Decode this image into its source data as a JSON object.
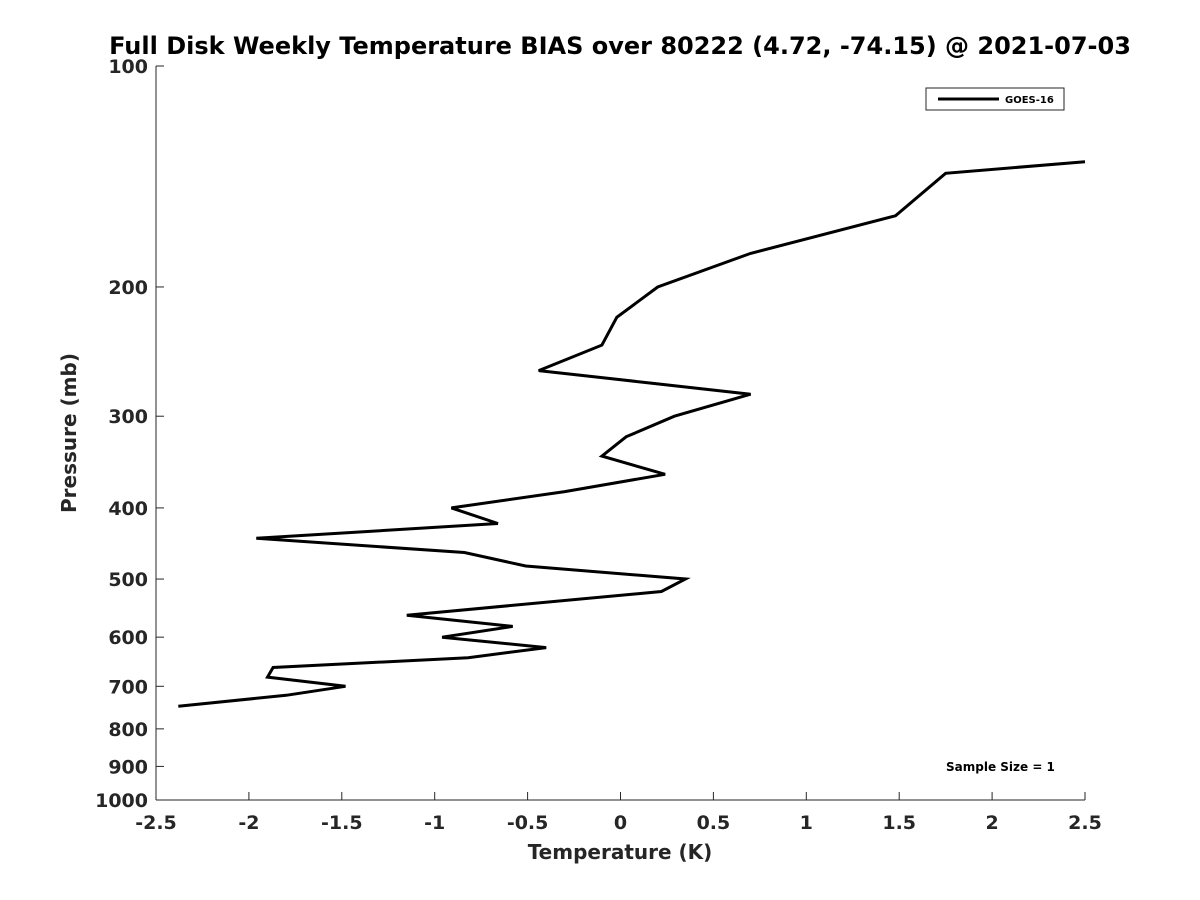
{
  "chart_data": {
    "type": "line",
    "title": "Full Disk Weekly Temperature BIAS over 80222 (4.72, -74.15) @ 2021-07-03",
    "xlabel": "Temperature (K)",
    "ylabel": "Pressure (mb)",
    "xlim": [
      -2.5,
      2.5
    ],
    "ylim": [
      100,
      1000
    ],
    "yscale": "log",
    "y_reversed": true,
    "x_ticks": [
      -2.5,
      -2,
      -1.5,
      -1,
      -0.5,
      0,
      0.5,
      1,
      1.5,
      2,
      2.5
    ],
    "x_tick_labels": [
      "-2.5",
      "-2",
      "-1.5",
      "-1",
      "-0.5",
      "0",
      "0.5",
      "1",
      "1.5",
      "2",
      "2.5"
    ],
    "y_ticks": [
      100,
      200,
      300,
      400,
      500,
      600,
      700,
      800,
      900,
      1000
    ],
    "y_tick_labels": [
      "100",
      "200",
      "300",
      "400",
      "500",
      "600",
      "700",
      "800",
      "900",
      "1000"
    ],
    "legend_position": "top-right",
    "series": [
      {
        "name": "GOES-16",
        "color": "#000000",
        "x": [
          2.5,
          1.75,
          1.48,
          0.7,
          0.2,
          -0.02,
          -0.1,
          -0.44,
          0.7,
          0.29,
          0.03,
          -0.1,
          0.24,
          -0.3,
          -0.91,
          -0.66,
          -1.96,
          -0.84,
          -0.51,
          0.35,
          0.22,
          -1.15,
          -0.58,
          -0.96,
          -0.4,
          -0.82,
          -1.87,
          -1.9,
          -1.48,
          -1.8,
          -2.38
        ],
        "y": [
          135,
          140,
          160,
          180,
          200,
          220,
          240,
          260,
          280,
          300,
          320,
          340,
          360,
          380,
          400,
          420,
          440,
          460,
          480,
          500,
          520,
          560,
          580,
          600,
          620,
          640,
          660,
          680,
          700,
          720,
          745
        ]
      }
    ],
    "annotation": "Sample Size = 1"
  }
}
